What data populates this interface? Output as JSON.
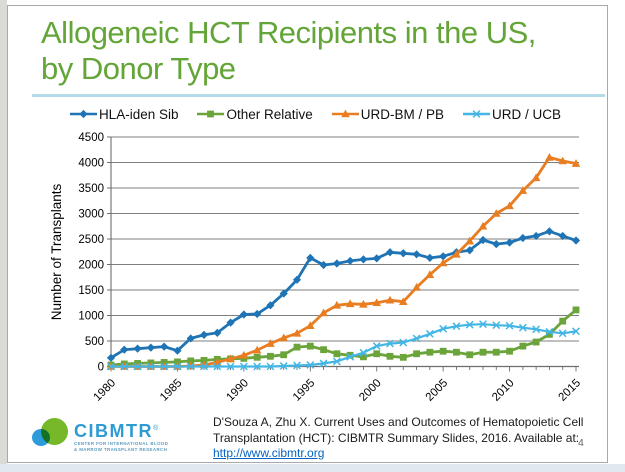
{
  "slide": {
    "title_line1": "Allogeneic HCT Recipients in the US,",
    "title_line2": "by Donor Type",
    "title_color": "#63a537",
    "title_rule_color": "#b3dcea",
    "page_number": "4"
  },
  "chart_data": {
    "type": "line",
    "title": "",
    "xlabel": "",
    "ylabel": "Number of Transplants",
    "ylim": [
      0,
      4500
    ],
    "ytick_step": 500,
    "grid": true,
    "legend_position": "top",
    "x": [
      1980,
      1981,
      1982,
      1983,
      1984,
      1985,
      1986,
      1987,
      1988,
      1989,
      1990,
      1991,
      1992,
      1993,
      1994,
      1995,
      1996,
      1997,
      1998,
      1999,
      2000,
      2001,
      2002,
      2003,
      2004,
      2005,
      2006,
      2007,
      2008,
      2009,
      2010,
      2011,
      2012,
      2013,
      2014,
      2015
    ],
    "x_tick_labels": [
      "1980",
      "1985",
      "1990",
      "1995",
      "2000",
      "2005",
      "2010",
      "2015"
    ],
    "series": [
      {
        "name": "HLA-iden Sib",
        "color": "#1f74b5",
        "marker": "diamond",
        "values": [
          170,
          330,
          350,
          370,
          390,
          310,
          550,
          620,
          660,
          860,
          1020,
          1030,
          1200,
          1430,
          1700,
          2130,
          1990,
          2020,
          2070,
          2100,
          2120,
          2240,
          2220,
          2200,
          2130,
          2160,
          2240,
          2280,
          2480,
          2400,
          2430,
          2520,
          2560,
          2650,
          2560,
          2470
        ]
      },
      {
        "name": "Other Relative",
        "color": "#6ba43a",
        "marker": "square",
        "values": [
          30,
          50,
          60,
          70,
          80,
          90,
          110,
          120,
          140,
          150,
          160,
          180,
          200,
          230,
          380,
          400,
          330,
          250,
          220,
          190,
          250,
          200,
          180,
          250,
          280,
          300,
          280,
          230,
          280,
          280,
          300,
          400,
          480,
          630,
          890,
          1110
        ]
      },
      {
        "name": "URD-BM / PB",
        "color": "#e87d22",
        "marker": "triangle",
        "values": [
          0,
          0,
          0,
          0,
          0,
          0,
          10,
          30,
          80,
          150,
          220,
          320,
          450,
          560,
          650,
          800,
          1050,
          1200,
          1230,
          1220,
          1250,
          1300,
          1270,
          1550,
          1800,
          2030,
          2200,
          2460,
          2750,
          3000,
          3150,
          3450,
          3700,
          4100,
          4030,
          3980
        ]
      },
      {
        "name": "URD / UCB",
        "color": "#44b6e5",
        "marker": "x",
        "values": [
          0,
          0,
          0,
          0,
          0,
          0,
          0,
          0,
          0,
          0,
          0,
          0,
          0,
          10,
          20,
          30,
          60,
          100,
          190,
          270,
          400,
          450,
          470,
          550,
          640,
          740,
          790,
          820,
          830,
          810,
          800,
          760,
          730,
          680,
          650,
          690
        ]
      }
    ]
  },
  "footer": {
    "logo": {
      "wordmark": "CIBMTR",
      "registered_mark": "®",
      "tagline_line1": "CENTER FOR INTERNATIONAL BLOOD",
      "tagline_line2": "& MARROW TRANSPLANT RESEARCH",
      "wordmark_color": "#2e9bd3",
      "circle_green": "#76b82a",
      "circle_blue": "#2d9cdb"
    },
    "citation_line1": "D'Souza A, Zhu X. Current Uses and Outcomes of Hematopoietic Cell",
    "citation_line2": "Transplantation (HCT): CIBMTR Summary Slides, 2016. Available at:",
    "citation_link": "http://www.cibmtr.org",
    "link_color": "#0563c1"
  }
}
